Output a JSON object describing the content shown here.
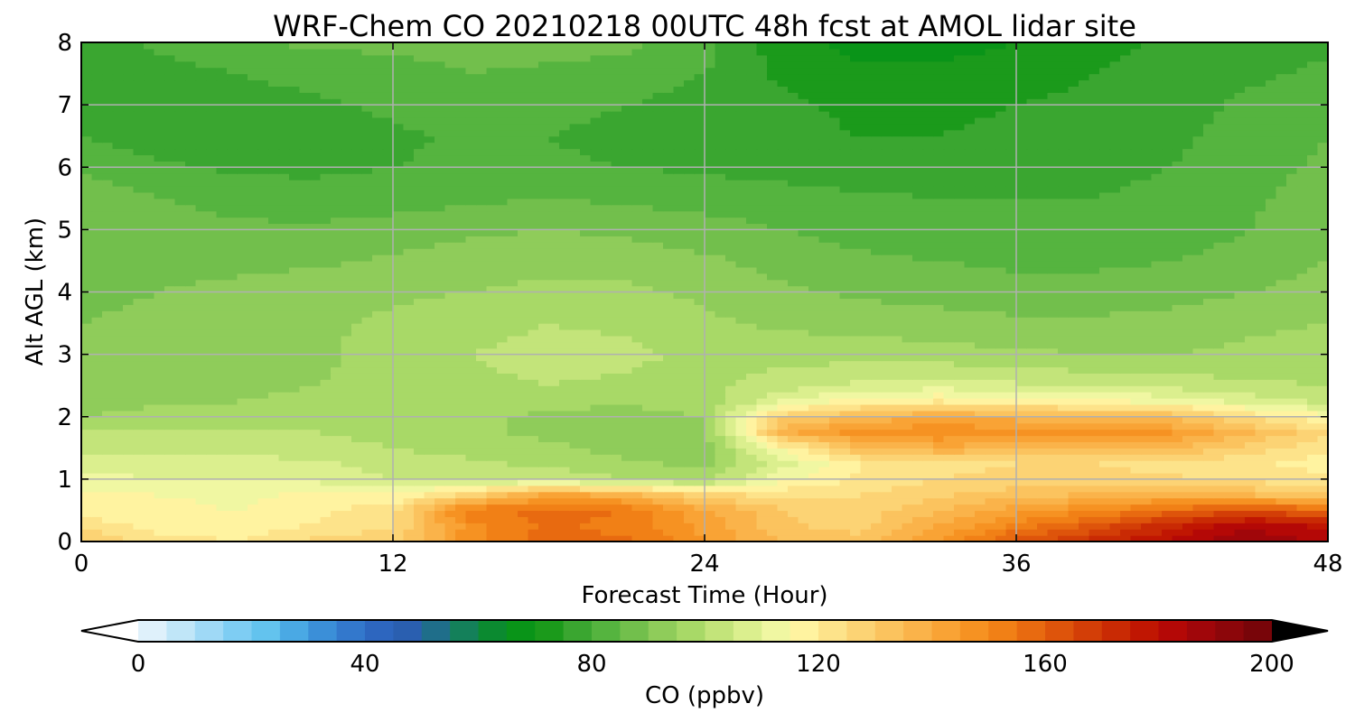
{
  "chart_data": {
    "type": "heatmap",
    "title": "WRF-Chem CO  20210218 00UTC 48h fcst at AMOL lidar site",
    "xlabel": "Forecast Time (Hour)",
    "ylabel": "Alt AGL (km)",
    "xlim": [
      0,
      48
    ],
    "ylim": [
      0,
      8
    ],
    "x_ticks": [
      0,
      12,
      24,
      36,
      48
    ],
    "y_ticks": [
      0,
      1,
      2,
      3,
      4,
      5,
      6,
      7,
      8
    ],
    "grid": true,
    "colorbar": {
      "label": "CO  (ppbv)",
      "min": 0,
      "max": 200,
      "step": 5,
      "extend": "both",
      "orientation": "horizontal",
      "placement": "bottom",
      "ticks": [
        0,
        40,
        80,
        120,
        160,
        200
      ],
      "colors": [
        "#ffffff",
        "#dff1fb",
        "#c0e6f8",
        "#9fd9f6",
        "#7ecdf3",
        "#63c3ee",
        "#4aa9e4",
        "#3b8fd8",
        "#3378cc",
        "#2d66bf",
        "#2a5fb0",
        "#1f6e8a",
        "#14805a",
        "#0b8a30",
        "#099418",
        "#1b9a1b",
        "#3aa630",
        "#55b43f",
        "#72bf4c",
        "#8fcc5a",
        "#a8d967",
        "#c3e47a",
        "#dbef8e",
        "#f0f7a2",
        "#fff3a0",
        "#fde38a",
        "#fcd374",
        "#fbc35e",
        "#fab34a",
        "#f9a335",
        "#f69222",
        "#f18016",
        "#e86a10",
        "#de540b",
        "#d33e07",
        "#c92a04",
        "#c01602",
        "#b40806",
        "#a0060a",
        "#8c060a",
        "#780509",
        "#640408",
        "#500306",
        "#3c0205",
        "#280104",
        "#140002",
        "#000000"
      ]
    },
    "times": [
      0,
      3,
      6,
      9,
      12,
      15,
      18,
      21,
      24,
      27,
      30,
      33,
      36,
      39,
      42,
      45,
      48
    ],
    "altitudes": [
      0,
      0.25,
      0.5,
      0.75,
      1.0,
      1.25,
      1.5,
      1.75,
      2.0,
      2.25,
      2.5,
      3.0,
      3.5,
      4.0,
      4.5,
      5.0,
      5.5,
      6.0,
      6.5,
      7.0,
      7.5,
      8.0
    ],
    "values": [
      [
        132,
        122,
        120,
        126,
        128,
        148,
        158,
        156,
        146,
        134,
        132,
        146,
        162,
        172,
        182,
        190,
        184
      ],
      [
        123,
        118,
        117,
        121,
        125,
        148,
        156,
        153,
        143,
        131,
        128,
        140,
        152,
        162,
        174,
        184,
        178
      ],
      [
        118,
        116,
        115,
        118,
        124,
        154,
        157,
        155,
        142,
        130,
        127,
        135,
        143,
        150,
        158,
        164,
        158
      ],
      [
        117,
        115,
        114,
        116,
        115,
        128,
        142,
        138,
        126,
        124,
        125,
        129,
        133,
        136,
        138,
        135,
        132
      ],
      [
        112,
        110,
        110,
        109,
        105,
        103,
        104,
        100,
        98,
        114,
        121,
        125,
        126,
        127,
        126,
        123,
        121
      ],
      [
        108,
        107,
        106,
        106,
        103,
        101,
        99,
        96,
        94,
        108,
        120,
        124,
        125,
        125,
        123,
        121,
        118
      ],
      [
        104,
        104,
        104,
        103,
        100,
        98,
        96,
        93,
        92,
        116,
        134,
        138,
        137,
        136,
        135,
        128,
        120
      ],
      [
        100,
        101,
        101,
        100,
        98,
        96,
        94,
        92,
        93,
        138,
        148,
        150,
        148,
        147,
        145,
        135,
        126
      ],
      [
        95,
        97,
        98,
        98,
        97,
        96,
        94,
        93,
        95,
        128,
        136,
        140,
        138,
        136,
        134,
        124,
        116
      ],
      [
        93,
        94,
        95,
        96,
        97,
        97,
        96,
        96,
        97,
        110,
        118,
        120,
        118,
        116,
        114,
        108,
        104
      ],
      [
        92,
        93,
        94,
        95,
        96,
        99,
        100,
        99,
        98,
        103,
        106,
        108,
        106,
        104,
        103,
        101,
        100
      ],
      [
        91,
        92,
        93,
        94,
        97,
        100,
        102,
        101,
        99,
        98,
        98,
        97,
        96,
        95,
        95,
        96,
        97
      ],
      [
        90,
        91,
        92,
        94,
        96,
        98,
        100,
        99,
        96,
        94,
        93,
        92,
        91,
        91,
        92,
        94,
        95
      ],
      [
        89,
        90,
        91,
        93,
        94,
        95,
        96,
        96,
        94,
        91,
        89,
        88,
        87,
        87,
        88,
        90,
        92
      ],
      [
        89,
        89,
        89,
        89,
        91,
        93,
        94,
        93,
        91,
        88,
        86,
        85,
        84,
        84,
        85,
        87,
        90
      ],
      [
        90,
        88,
        86,
        86,
        87,
        89,
        90,
        89,
        87,
        85,
        83,
        82,
        81,
        81,
        82,
        85,
        89
      ],
      [
        88,
        85,
        83,
        82,
        83,
        84,
        85,
        84,
        83,
        82,
        81,
        80,
        80,
        80,
        81,
        84,
        88
      ],
      [
        84,
        81,
        79,
        79,
        80,
        81,
        81,
        80,
        79,
        78,
        77,
        77,
        78,
        79,
        80,
        83,
        86
      ],
      [
        80,
        77,
        76,
        77,
        79,
        81,
        80,
        78,
        77,
        76,
        75,
        75,
        76,
        77,
        79,
        82,
        85
      ],
      [
        77,
        76,
        77,
        79,
        81,
        83,
        82,
        80,
        78,
        76,
        74,
        74,
        75,
        76,
        78,
        81,
        83
      ],
      [
        77,
        78,
        80,
        82,
        83,
        85,
        84,
        83,
        80,
        74,
        71,
        71,
        73,
        75,
        77,
        79,
        81
      ],
      [
        78,
        81,
        84,
        86,
        86,
        87,
        87,
        86,
        82,
        72,
        68,
        68,
        70,
        73,
        76,
        78,
        79
      ]
    ]
  }
}
